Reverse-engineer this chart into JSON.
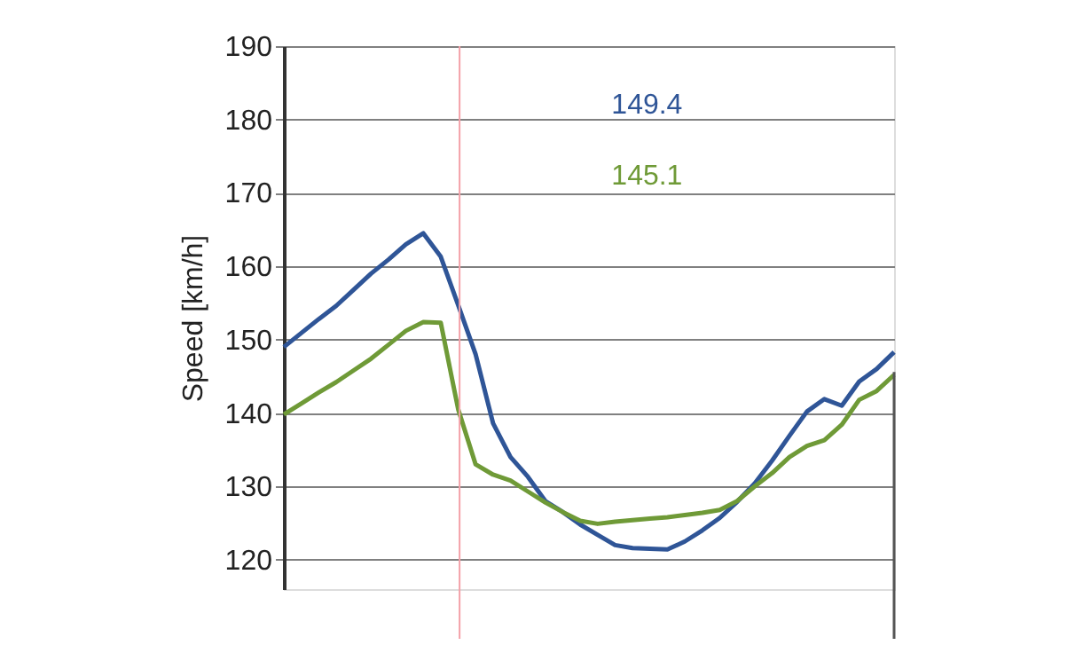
{
  "chart_data": {
    "type": "line",
    "ylabel": "Speed [km/h]",
    "categories": [
      null,
      null,
      null,
      null,
      null,
      null,
      null,
      null,
      null,
      null,
      null,
      null,
      null,
      null,
      null,
      null,
      null,
      null,
      null,
      null,
      null,
      null,
      null,
      null,
      null,
      null,
      null,
      null,
      null,
      null,
      null,
      null,
      null,
      null,
      null,
      null
    ],
    "series": [
      {
        "color": "#2f5597",
        "values": [
          149.0,
          150.9,
          152.8,
          154.6,
          156.8,
          159.0,
          160.9,
          163.0,
          164.5,
          161.3,
          154.7,
          148.0,
          138.6,
          134.0,
          131.3,
          128.0,
          126.5,
          124.8,
          123.4,
          122.0,
          121.6,
          121.5,
          121.4,
          122.5,
          124.0,
          125.7,
          127.9,
          130.4,
          133.5,
          136.9,
          140.2,
          141.9,
          141.0,
          144.3,
          146.0,
          148.3
        ]
      },
      {
        "color": "#6f9a37",
        "values": [
          139.8,
          141.3,
          142.8,
          144.2,
          145.8,
          147.4,
          149.3,
          151.2,
          152.4,
          152.3,
          140.5,
          133.0,
          131.6,
          130.8,
          129.3,
          127.8,
          126.5,
          125.3,
          124.9,
          125.2,
          125.4,
          125.6,
          125.8,
          126.1,
          126.4,
          126.8,
          128.0,
          130.0,
          131.8,
          134.0,
          135.5,
          136.3,
          138.4,
          141.8,
          143.0,
          145.2
        ]
      }
    ],
    "annotations": [
      "149.4",
      "145.1"
    ],
    "ylim": [
      116,
      190
    ],
    "yticks": [
      120,
      130,
      140,
      150,
      160,
      170,
      180,
      190
    ],
    "grid": "y",
    "tick_labels": "y",
    "marker": "none",
    "line_style": "solid"
  }
}
